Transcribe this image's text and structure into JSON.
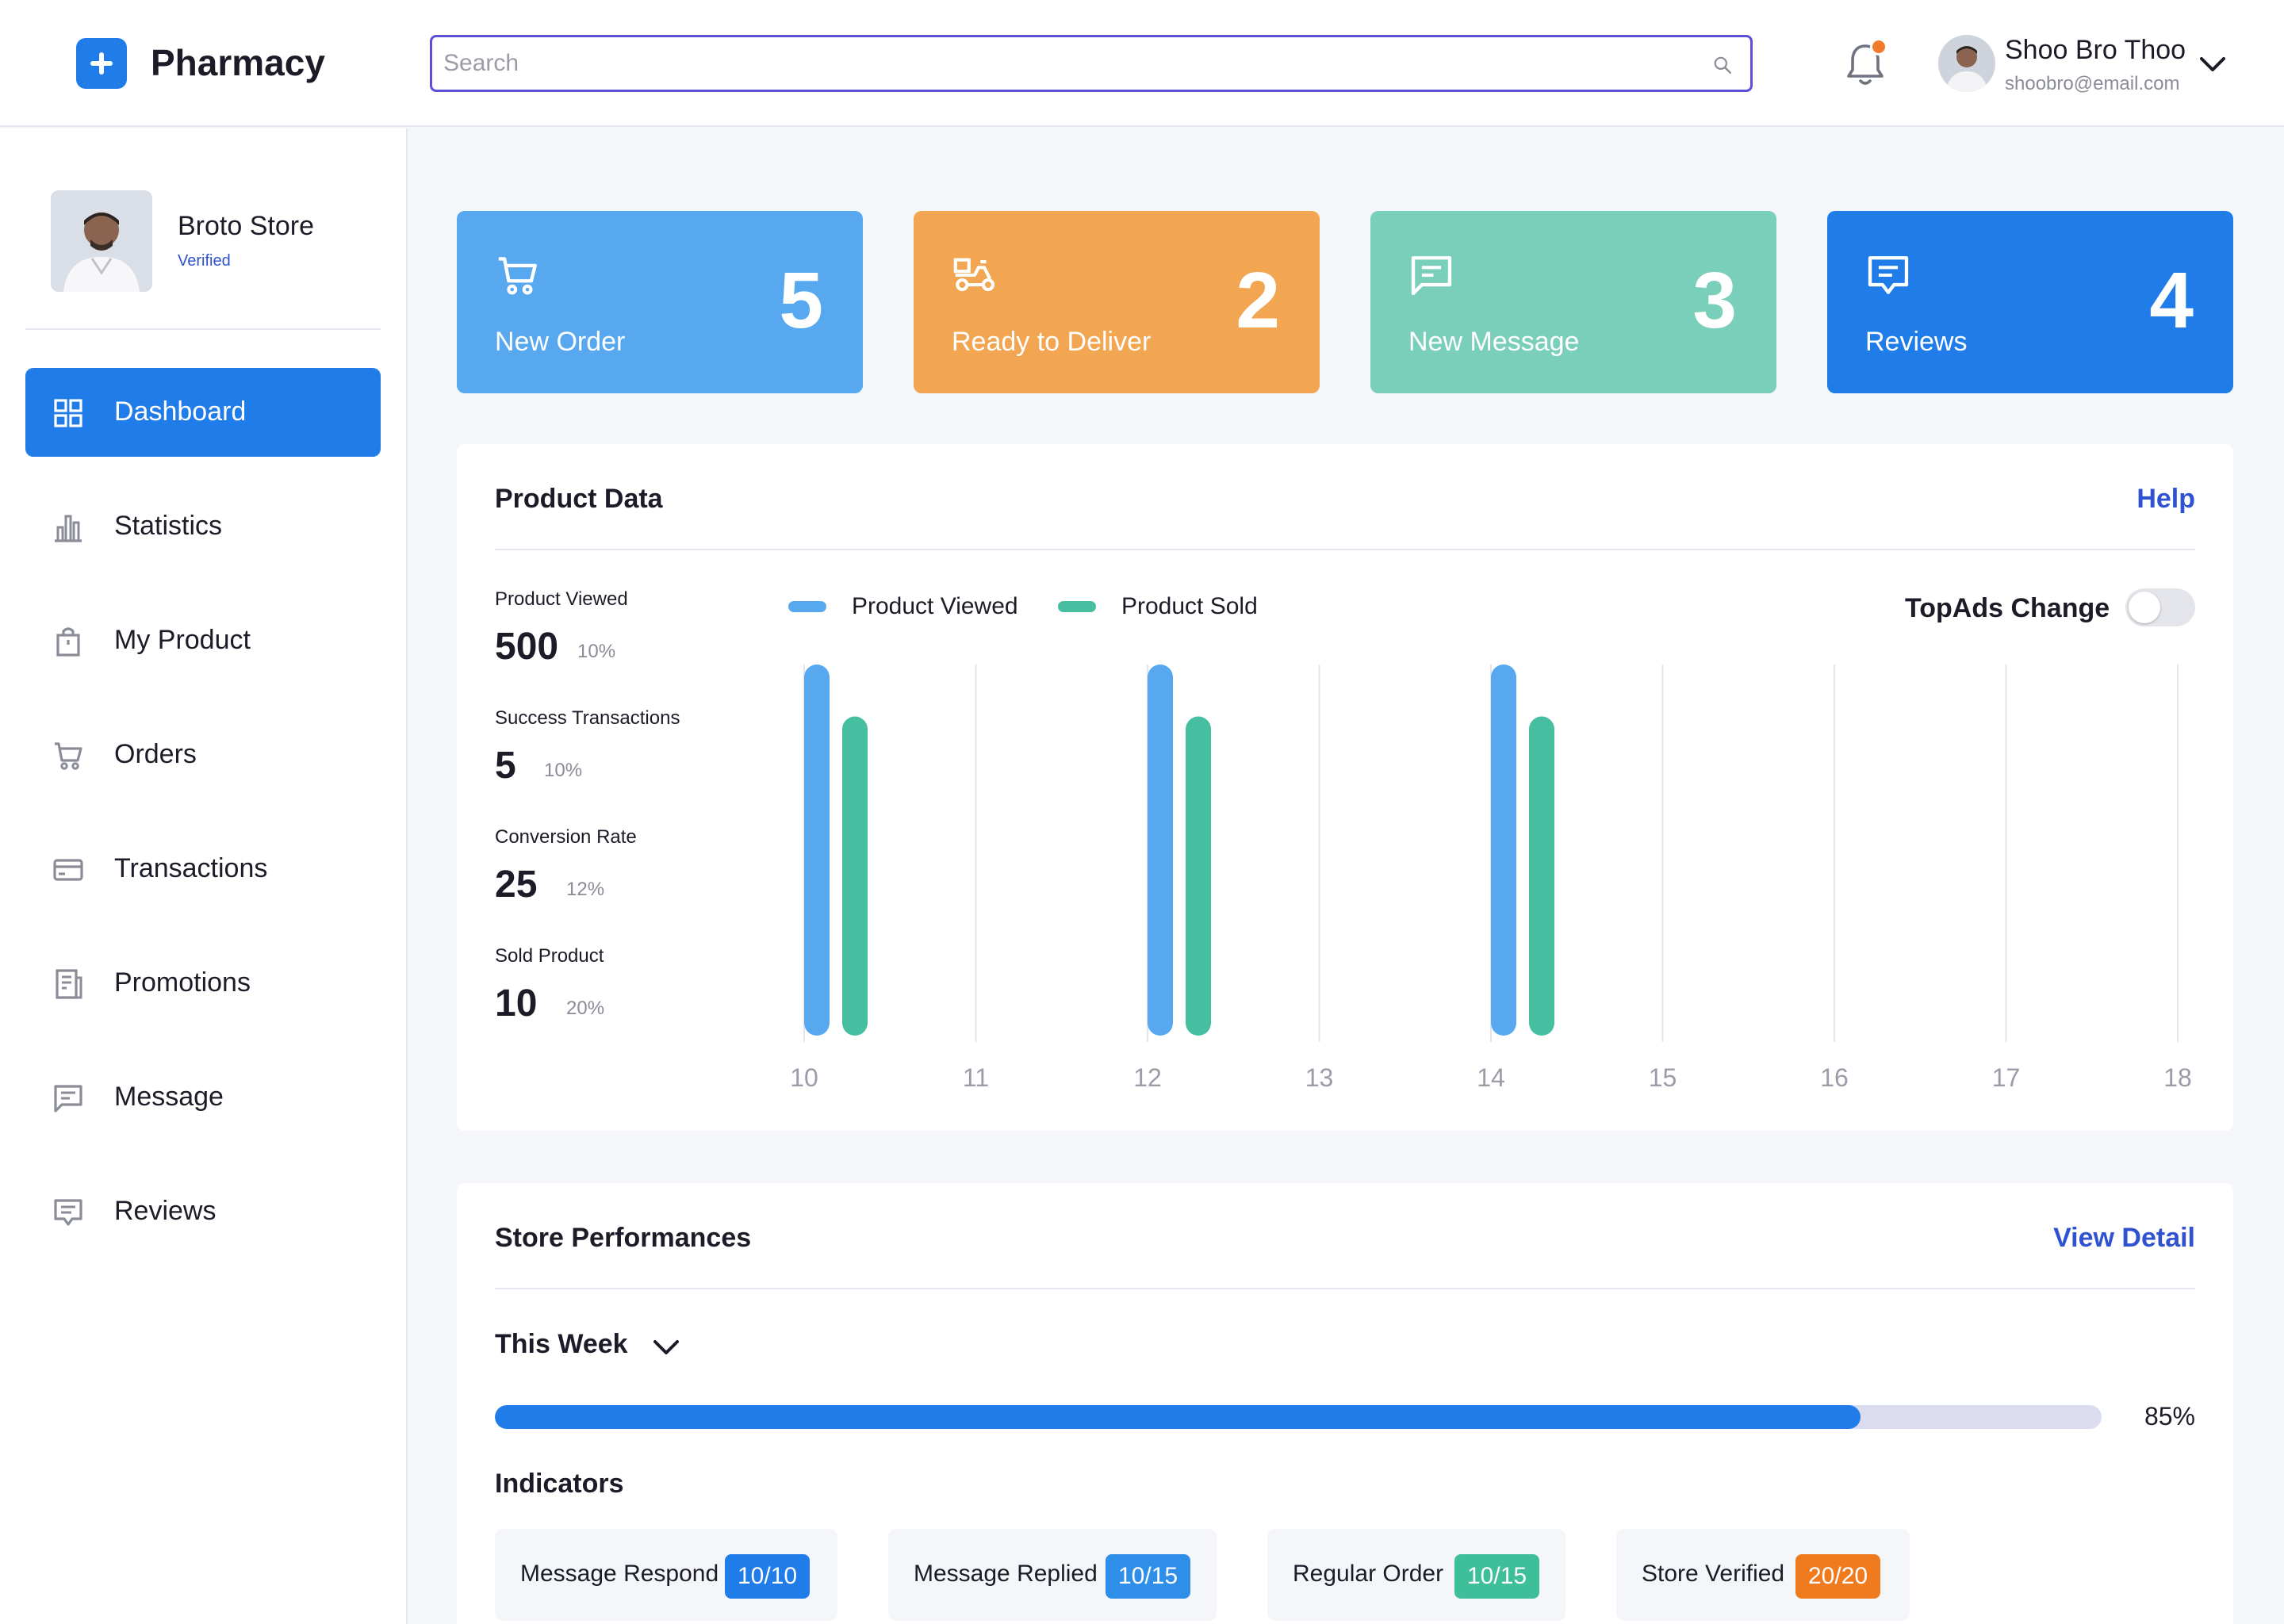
{
  "header": {
    "app_title": "Pharmacy",
    "search_placeholder": "Search",
    "user": {
      "name": "Shoo Bro Thoo",
      "email": "shoobro@email.com"
    },
    "notification_dot_color": "#f07b2b"
  },
  "sidebar": {
    "store": {
      "name": "Broto Store",
      "status": "Verified"
    },
    "items": [
      {
        "label": "Dashboard",
        "icon": "dashboard-icon",
        "active": true
      },
      {
        "label": "Statistics",
        "icon": "bar-chart-icon",
        "active": false
      },
      {
        "label": "My Product",
        "icon": "shopping-bag-icon",
        "active": false
      },
      {
        "label": "Orders",
        "icon": "cart-icon",
        "active": false
      },
      {
        "label": "Transactions",
        "icon": "credit-card-icon",
        "active": false
      },
      {
        "label": "Promotions",
        "icon": "receipt-icon",
        "active": false
      },
      {
        "label": "Message",
        "icon": "message-icon",
        "active": false
      },
      {
        "label": "Reviews",
        "icon": "review-icon",
        "active": false
      }
    ]
  },
  "cards": [
    {
      "label": "New Order",
      "value": "5",
      "icon": "cart-icon",
      "color": "#58a8f0"
    },
    {
      "label": "Ready to Deliver",
      "value": "2",
      "icon": "delivery-scooter-icon",
      "color": "#f3a651"
    },
    {
      "label": "New Message",
      "value": "3",
      "icon": "message-icon",
      "color": "#7acfbb"
    },
    {
      "label": "Reviews",
      "value": "4",
      "icon": "review-icon",
      "color": "#1f7ce8"
    }
  ],
  "product_data": {
    "title": "Product Data",
    "help_label": "Help",
    "metrics": [
      {
        "label": "Product Viewed",
        "value": "500",
        "pct": "10%"
      },
      {
        "label": "Success Transactions",
        "value": "5",
        "pct": "10%"
      },
      {
        "label": "Conversion Rate",
        "value": "25",
        "pct": "12%"
      },
      {
        "label": "Sold Product",
        "value": "10",
        "pct": "20%"
      }
    ],
    "toggle_label": "TopAds Change",
    "toggle_on": false
  },
  "chart_data": {
    "type": "bar",
    "categories": [
      "10",
      "11",
      "12",
      "13",
      "14",
      "15",
      "16",
      "17",
      "18"
    ],
    "series": [
      {
        "name": "Product Viewed",
        "color": "#58a8f0",
        "values": [
          100,
          null,
          100,
          null,
          100,
          null,
          null,
          null,
          null
        ]
      },
      {
        "name": "Product Sold",
        "color": "#45bfa0",
        "values": [
          86,
          null,
          86,
          null,
          86,
          null,
          null,
          null,
          null
        ]
      }
    ],
    "ylim": [
      0,
      100
    ],
    "grid": true,
    "legend": "top-left",
    "title": "",
    "xlabel": "",
    "ylabel": ""
  },
  "store_performances": {
    "title": "Store Performances",
    "view_detail_label": "View Detail",
    "period": "This Week",
    "progress": 0.85,
    "progress_label": "85%",
    "indicators_title": "Indicators",
    "indicators": [
      {
        "label": "Message Respond",
        "badge": "10/10",
        "color": "#1f7ce8"
      },
      {
        "label": "Message Replied",
        "badge": "10/15",
        "color": "#2f8fe8"
      },
      {
        "label": "Regular Order",
        "badge": "10/15",
        "color": "#3ebf9a"
      },
      {
        "label": "Store Verified",
        "badge": "20/20",
        "color": "#f07b1f"
      }
    ]
  }
}
